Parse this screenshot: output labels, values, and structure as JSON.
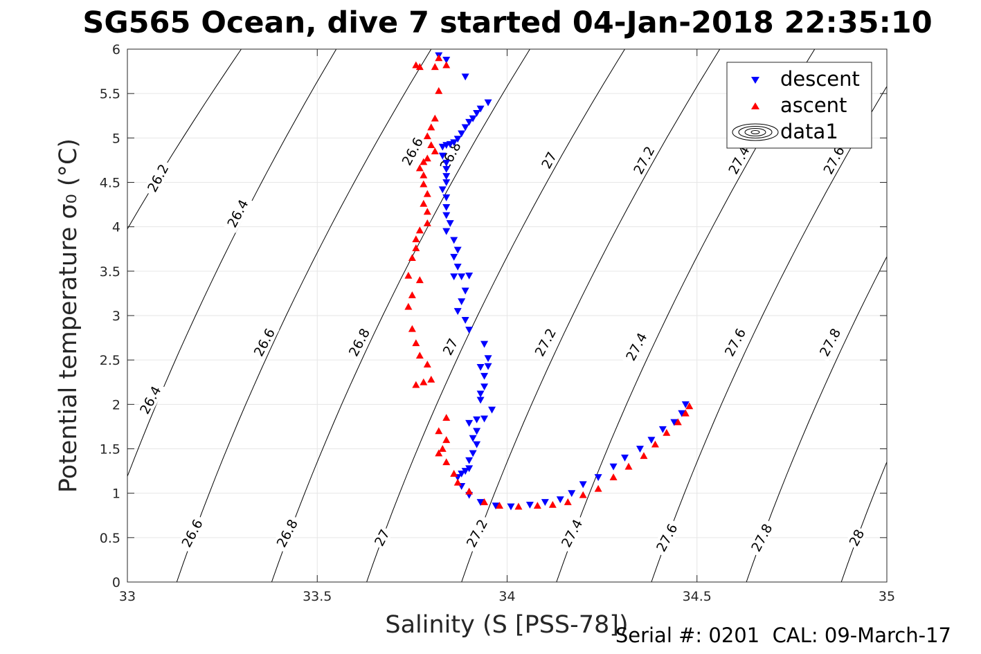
{
  "chart_data": {
    "type": "scatter",
    "title": "SG565 Ocean, dive 7 started 04-Jan-2018 22:35:10",
    "xlabel": "Salinity (S [PSS-78])",
    "ylabel": "Potential temperature σ₀ (°C)",
    "xlim": [
      33,
      35
    ],
    "ylim": [
      0,
      6
    ],
    "xticks": [
      "33",
      "33.5",
      "34",
      "34.5",
      "35"
    ],
    "yticks": [
      "0",
      "0.5",
      "1",
      "1.5",
      "2",
      "2.5",
      "3",
      "3.5",
      "4",
      "4.5",
      "5",
      "5.5",
      "6"
    ],
    "grid": true,
    "legend_position": "top-right",
    "footer": "Serial #: 0201  CAL: 09-March-17",
    "density_contours": [
      {
        "level": "26.2",
        "bottom_s": 32.55,
        "top_s": 33.3
      },
      {
        "level": "26.4",
        "bottom_s": 32.9,
        "top_s": 33.55
      },
      {
        "level": "26.6",
        "bottom_s": 33.13,
        "top_s": 33.8
      },
      {
        "level": "26.8",
        "bottom_s": 33.38,
        "top_s": 34.06
      },
      {
        "level": "27",
        "bottom_s": 33.63,
        "top_s": 34.31
      },
      {
        "level": "27.2",
        "bottom_s": 33.88,
        "top_s": 34.56
      },
      {
        "level": "27.4",
        "bottom_s": 34.13,
        "top_s": 34.81
      },
      {
        "level": "27.6",
        "bottom_s": 34.38,
        "top_s": 35.06
      },
      {
        "level": "27.8",
        "bottom_s": 34.63,
        "top_s": 35.31
      },
      {
        "level": "28",
        "bottom_s": 34.88,
        "top_s": 35.56
      }
    ],
    "contour_labels": [
      {
        "text": "26.2",
        "s": 33.08,
        "t": 4.55
      },
      {
        "text": "26.4",
        "s": 33.29,
        "t": 4.15
      },
      {
        "text": "26.6",
        "s": 33.75,
        "t": 4.85
      },
      {
        "text": "26.8",
        "s": 33.85,
        "t": 4.8
      },
      {
        "text": "27",
        "s": 34.11,
        "t": 4.75
      },
      {
        "text": "27.2",
        "s": 34.36,
        "t": 4.75
      },
      {
        "text": "27.4",
        "s": 34.61,
        "t": 4.75
      },
      {
        "text": "27.6",
        "s": 34.86,
        "t": 4.75
      },
      {
        "text": "26.4",
        "s": 33.06,
        "t": 2.05
      },
      {
        "text": "26.6",
        "s": 33.36,
        "t": 2.7
      },
      {
        "text": "26.8",
        "s": 33.61,
        "t": 2.7
      },
      {
        "text": "27",
        "s": 33.85,
        "t": 2.65
      },
      {
        "text": "27.2",
        "s": 34.1,
        "t": 2.7
      },
      {
        "text": "27.4",
        "s": 34.34,
        "t": 2.65
      },
      {
        "text": "27.6",
        "s": 34.6,
        "t": 2.7
      },
      {
        "text": "27.8",
        "s": 34.85,
        "t": 2.7
      },
      {
        "text": "26.6",
        "s": 33.17,
        "t": 0.55
      },
      {
        "text": "26.8",
        "s": 33.42,
        "t": 0.55
      },
      {
        "text": "27",
        "s": 33.67,
        "t": 0.5
      },
      {
        "text": "27.2",
        "s": 33.92,
        "t": 0.55
      },
      {
        "text": "27.4",
        "s": 34.17,
        "t": 0.55
      },
      {
        "text": "27.6",
        "s": 34.42,
        "t": 0.5
      },
      {
        "text": "27.8",
        "s": 34.67,
        "t": 0.5
      },
      {
        "text": "28",
        "s": 34.92,
        "t": 0.5
      }
    ],
    "series": [
      {
        "name": "descent",
        "marker": "triangle-down",
        "color": "#0000ff",
        "points": [
          [
            33.82,
            5.93
          ],
          [
            33.84,
            5.88
          ],
          [
            33.89,
            5.69
          ],
          [
            33.95,
            5.4
          ],
          [
            33.93,
            5.33
          ],
          [
            33.92,
            5.28
          ],
          [
            33.91,
            5.22
          ],
          [
            33.9,
            5.18
          ],
          [
            33.89,
            5.12
          ],
          [
            33.88,
            5.05
          ],
          [
            33.87,
            4.99
          ],
          [
            33.86,
            4.95
          ],
          [
            33.85,
            4.93
          ],
          [
            33.84,
            4.92
          ],
          [
            33.83,
            4.9
          ],
          [
            33.83,
            4.8
          ],
          [
            33.84,
            4.72
          ],
          [
            33.84,
            4.65
          ],
          [
            33.84,
            4.57
          ],
          [
            33.84,
            4.5
          ],
          [
            33.83,
            4.42
          ],
          [
            33.84,
            4.33
          ],
          [
            33.84,
            4.22
          ],
          [
            33.84,
            4.13
          ],
          [
            33.85,
            4.04
          ],
          [
            33.84,
            3.95
          ],
          [
            33.86,
            3.85
          ],
          [
            33.87,
            3.74
          ],
          [
            33.86,
            3.66
          ],
          [
            33.87,
            3.55
          ],
          [
            33.86,
            3.44
          ],
          [
            33.88,
            3.44
          ],
          [
            33.9,
            3.45
          ],
          [
            33.89,
            3.28
          ],
          [
            33.88,
            3.16
          ],
          [
            33.87,
            3.05
          ],
          [
            33.89,
            2.95
          ],
          [
            33.9,
            2.84
          ],
          [
            33.94,
            2.68
          ],
          [
            33.95,
            2.52
          ],
          [
            33.95,
            2.43
          ],
          [
            33.93,
            2.42
          ],
          [
            33.94,
            2.32
          ],
          [
            33.94,
            2.2
          ],
          [
            33.93,
            2.12
          ],
          [
            33.93,
            2.05
          ],
          [
            33.96,
            1.94
          ],
          [
            33.94,
            1.84
          ],
          [
            33.92,
            1.83
          ],
          [
            33.9,
            1.79
          ],
          [
            33.92,
            1.7
          ],
          [
            33.91,
            1.62
          ],
          [
            33.92,
            1.55
          ],
          [
            33.91,
            1.45
          ],
          [
            33.9,
            1.37
          ],
          [
            33.9,
            1.28
          ],
          [
            33.89,
            1.25
          ],
          [
            33.88,
            1.22
          ],
          [
            33.87,
            1.18
          ],
          [
            33.88,
            1.08
          ],
          [
            33.9,
            0.98
          ],
          [
            33.93,
            0.9
          ],
          [
            33.97,
            0.86
          ],
          [
            34.01,
            0.85
          ],
          [
            34.06,
            0.87
          ],
          [
            34.1,
            0.9
          ],
          [
            34.14,
            0.93
          ],
          [
            34.17,
            1.0
          ],
          [
            34.2,
            1.1
          ],
          [
            34.24,
            1.18
          ],
          [
            34.28,
            1.3
          ],
          [
            34.31,
            1.4
          ],
          [
            34.35,
            1.5
          ],
          [
            34.38,
            1.6
          ],
          [
            34.41,
            1.72
          ],
          [
            34.44,
            1.8
          ],
          [
            34.46,
            1.9
          ],
          [
            34.47,
            2.0
          ]
        ]
      },
      {
        "name": "ascent",
        "marker": "triangle-up",
        "color": "#ff0000",
        "points": [
          [
            33.82,
            5.9
          ],
          [
            33.84,
            5.82
          ],
          [
            33.81,
            5.8
          ],
          [
            33.77,
            5.8
          ],
          [
            33.76,
            5.82
          ],
          [
            33.82,
            5.53
          ],
          [
            33.81,
            5.22
          ],
          [
            33.8,
            5.12
          ],
          [
            33.79,
            5.02
          ],
          [
            33.8,
            4.92
          ],
          [
            33.81,
            4.85
          ],
          [
            33.79,
            4.77
          ],
          [
            33.78,
            4.73
          ],
          [
            33.77,
            4.66
          ],
          [
            33.78,
            4.58
          ],
          [
            33.78,
            4.48
          ],
          [
            33.79,
            4.37
          ],
          [
            33.78,
            4.26
          ],
          [
            33.79,
            4.17
          ],
          [
            33.79,
            4.04
          ],
          [
            33.77,
            3.96
          ],
          [
            33.76,
            3.86
          ],
          [
            33.76,
            3.76
          ],
          [
            33.75,
            3.65
          ],
          [
            33.74,
            3.45
          ],
          [
            33.77,
            3.4
          ],
          [
            33.75,
            3.23
          ],
          [
            33.74,
            3.1
          ],
          [
            33.75,
            2.85
          ],
          [
            33.76,
            2.69
          ],
          [
            33.77,
            2.55
          ],
          [
            33.79,
            2.45
          ],
          [
            33.8,
            2.28
          ],
          [
            33.78,
            2.25
          ],
          [
            33.76,
            2.22
          ],
          [
            33.84,
            1.85
          ],
          [
            33.82,
            1.7
          ],
          [
            33.84,
            1.6
          ],
          [
            33.83,
            1.5
          ],
          [
            33.82,
            1.45
          ],
          [
            33.84,
            1.35
          ],
          [
            33.86,
            1.22
          ],
          [
            33.87,
            1.12
          ],
          [
            33.9,
            1.02
          ],
          [
            33.94,
            0.9
          ],
          [
            33.98,
            0.86
          ],
          [
            34.03,
            0.85
          ],
          [
            34.08,
            0.86
          ],
          [
            34.12,
            0.87
          ],
          [
            34.16,
            0.9
          ],
          [
            34.2,
            0.98
          ],
          [
            34.24,
            1.05
          ],
          [
            34.28,
            1.18
          ],
          [
            34.32,
            1.3
          ],
          [
            34.36,
            1.42
          ],
          [
            34.39,
            1.55
          ],
          [
            34.42,
            1.68
          ],
          [
            34.45,
            1.8
          ],
          [
            34.47,
            1.9
          ],
          [
            34.48,
            1.98
          ]
        ]
      },
      {
        "name": "data1",
        "marker": "contour"
      }
    ]
  }
}
